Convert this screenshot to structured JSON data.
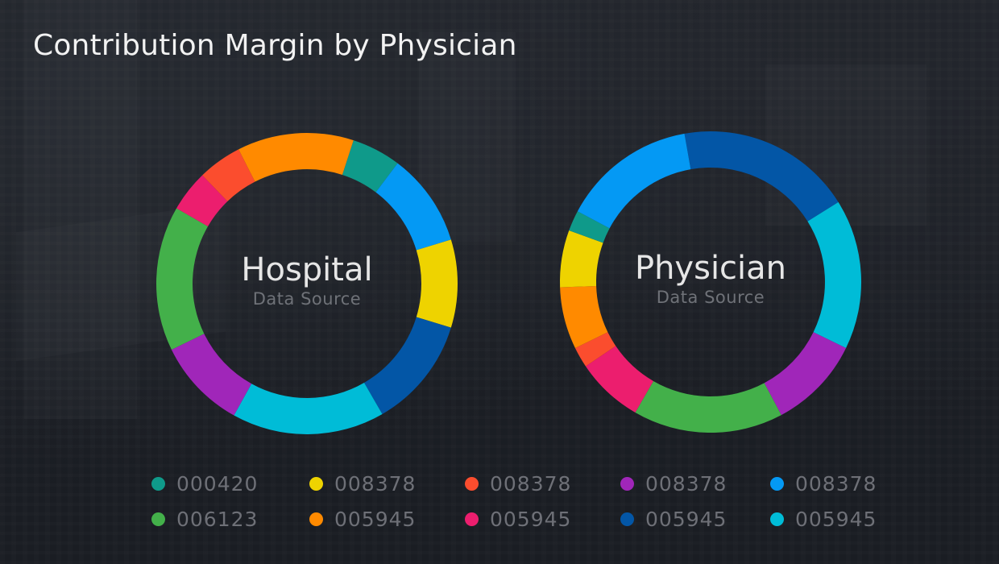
{
  "title": "Contribution Margin by Physician",
  "colors": {
    "teal": "#0f9a8a",
    "green": "#43b04a",
    "yellow": "#eed300",
    "orange": "#ff8a00",
    "red": "#fb4d2e",
    "pink": "#ec1e6e",
    "purple": "#a026b9",
    "dark_blue": "#0356a6",
    "blue": "#0499f4",
    "cyan": "#00bcd7"
  },
  "donuts": [
    {
      "label": "Hospital",
      "sublabel": "Data Source"
    },
    {
      "label": "Physician",
      "sublabel": "Data Source"
    }
  ],
  "legend": [
    {
      "label": "000420",
      "color": "#0f9a8a"
    },
    {
      "label": "008378",
      "color": "#eed300"
    },
    {
      "label": "008378",
      "color": "#fb4d2e"
    },
    {
      "label": "008378",
      "color": "#a026b9"
    },
    {
      "label": "008378",
      "color": "#0499f4"
    },
    {
      "label": "006123",
      "color": "#43b04a"
    },
    {
      "label": "005945",
      "color": "#ff8a00"
    },
    {
      "label": "005945",
      "color": "#ec1e6e"
    },
    {
      "label": "005945",
      "color": "#0356a6"
    },
    {
      "label": "005945",
      "color": "#00bcd7"
    }
  ],
  "chart_data": [
    {
      "type": "pie",
      "title": "Hospital",
      "subtitle": "Data Source",
      "donut": true,
      "start_angle_deg": 18,
      "direction": "clockwise",
      "slices": [
        {
          "legend": "000420",
          "color": "#0f9a8a",
          "degrees": 19,
          "percent": 5.3
        },
        {
          "legend": "008378",
          "color": "#0499f4",
          "degrees": 36,
          "percent": 10.0
        },
        {
          "legend": "008378",
          "color": "#eed300",
          "degrees": 34,
          "percent": 9.4
        },
        {
          "legend": "005945",
          "color": "#0356a6",
          "degrees": 43,
          "percent": 11.9
        },
        {
          "legend": "005945",
          "color": "#00bcd7",
          "degrees": 59,
          "percent": 16.4
        },
        {
          "legend": "008378",
          "color": "#a026b9",
          "degrees": 35,
          "percent": 9.7
        },
        {
          "legend": "006123",
          "color": "#43b04a",
          "degrees": 56,
          "percent": 15.6
        },
        {
          "legend": "005945",
          "color": "#ec1e6e",
          "degrees": 16,
          "percent": 4.4
        },
        {
          "legend": "008378",
          "color": "#fb4d2e",
          "degrees": 17,
          "percent": 4.7
        },
        {
          "legend": "005945",
          "color": "#ff8a00",
          "degrees": 45,
          "percent": 12.5
        }
      ]
    },
    {
      "type": "pie",
      "title": "Physician",
      "subtitle": "Data Source",
      "donut": true,
      "start_angle_deg": -10,
      "direction": "clockwise",
      "slices": [
        {
          "legend": "005945",
          "color": "#0356a6",
          "degrees": 68,
          "percent": 18.9
        },
        {
          "legend": "005945",
          "color": "#00bcd7",
          "degrees": 58,
          "percent": 16.1
        },
        {
          "legend": "008378",
          "color": "#a026b9",
          "degrees": 36,
          "percent": 10.0
        },
        {
          "legend": "006123",
          "color": "#43b04a",
          "degrees": 58,
          "percent": 16.1
        },
        {
          "legend": "005945",
          "color": "#ec1e6e",
          "degrees": 26,
          "percent": 7.2
        },
        {
          "legend": "008378",
          "color": "#fb4d2e",
          "degrees": 8,
          "percent": 2.2
        },
        {
          "legend": "005945",
          "color": "#ff8a00",
          "degrees": 24,
          "percent": 6.7
        },
        {
          "legend": "008378",
          "color": "#eed300",
          "degrees": 22,
          "percent": 6.1
        },
        {
          "legend": "000420",
          "color": "#0f9a8a",
          "degrees": 8,
          "percent": 2.2
        },
        {
          "legend": "008378",
          "color": "#0499f4",
          "degrees": 52,
          "percent": 14.4
        }
      ]
    }
  ]
}
